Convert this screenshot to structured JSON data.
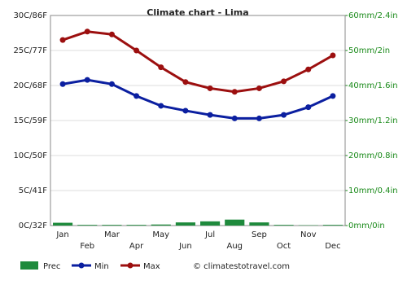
{
  "chart_data": {
    "type": "combo",
    "title": "Climate chart - Lima",
    "categories": [
      "Jan",
      "Feb",
      "Mar",
      "Apr",
      "May",
      "Jun",
      "Jul",
      "Aug",
      "Sep",
      "Oct",
      "Nov",
      "Dec"
    ],
    "series": [
      {
        "name": "Prec",
        "type": "bar",
        "axis": "y2",
        "color": "#1e8a3c",
        "values": [
          0.8,
          0.2,
          0.2,
          0.2,
          0.3,
          0.9,
          1.2,
          1.7,
          0.9,
          0.2,
          0.1,
          0.2
        ]
      },
      {
        "name": "Min",
        "type": "line",
        "color": "#0b1fa0",
        "values": [
          20.2,
          20.8,
          20.2,
          18.5,
          17.1,
          16.4,
          15.8,
          15.3,
          15.3,
          15.8,
          16.9,
          18.5
        ]
      },
      {
        "name": "Max",
        "type": "line",
        "color": "#9c0f0f",
        "values": [
          26.5,
          27.7,
          27.3,
          25.0,
          22.6,
          20.5,
          19.6,
          19.1,
          19.6,
          20.6,
          22.3,
          24.3
        ]
      }
    ],
    "ylim": [
      0,
      30
    ],
    "yticks": [
      {
        "value": 0,
        "label": "0C/32F"
      },
      {
        "value": 5,
        "label": "5C/41F"
      },
      {
        "value": 10,
        "label": "10C/50F"
      },
      {
        "value": 15,
        "label": "15C/59F"
      },
      {
        "value": 20,
        "label": "20C/68F"
      },
      {
        "value": 25,
        "label": "25C/77F"
      },
      {
        "value": 30,
        "label": "30C/86F"
      }
    ],
    "y2lim": [
      0,
      60
    ],
    "y2ticks": [
      {
        "value": 0,
        "label": "0mm/0in"
      },
      {
        "value": 10,
        "label": "10mm/0.4in"
      },
      {
        "value": 20,
        "label": "20mm/0.8in"
      },
      {
        "value": 30,
        "label": "30mm/1.2in"
      },
      {
        "value": 40,
        "label": "40mm/1.6in"
      },
      {
        "value": 50,
        "label": "50mm/2in"
      },
      {
        "value": 60,
        "label": "60mm/2.4in"
      }
    ],
    "grid": true,
    "source": "© climatestotravel.com"
  }
}
